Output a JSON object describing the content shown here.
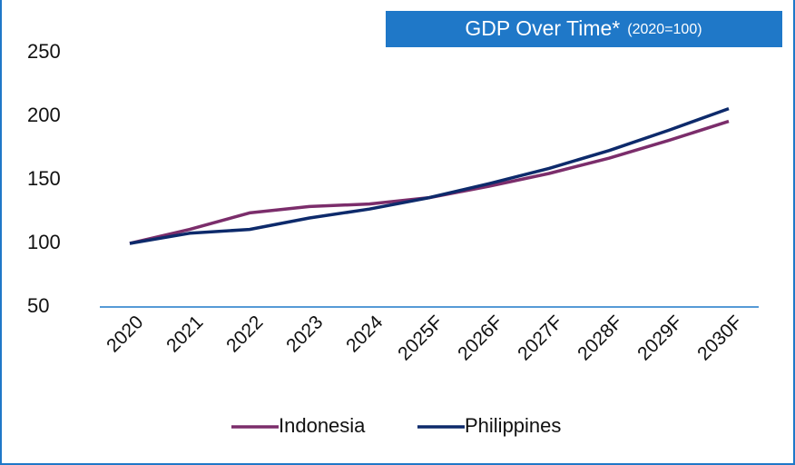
{
  "chart_data": {
    "type": "line",
    "title": "GDP Over Time*",
    "subtitle": "(2020=100)",
    "categories": [
      "2020",
      "2021",
      "2022",
      "2023",
      "2024",
      "2025F",
      "2026F",
      "2027F",
      "2028F",
      "2029F",
      "2030F"
    ],
    "series": [
      {
        "name": "Indonesia",
        "color": "#7b2d6b",
        "values": [
          100,
          111,
          124,
          129,
          131,
          136,
          145,
          155,
          167,
          181,
          196
        ]
      },
      {
        "name": "Philippines",
        "color": "#0d2a6b",
        "values": [
          100,
          108,
          111,
          120,
          127,
          136,
          147,
          159,
          173,
          189,
          206
        ]
      }
    ],
    "ylim": [
      50,
      250
    ],
    "yticks": [
      50,
      100,
      150,
      200,
      250
    ],
    "grid": false,
    "legend": "bottom"
  }
}
